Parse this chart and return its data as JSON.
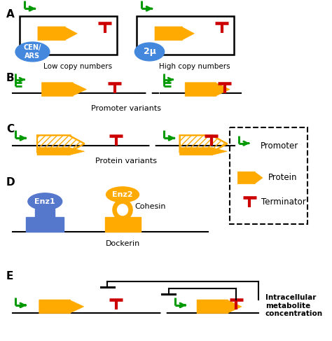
{
  "bg_color": "#ffffff",
  "green": "#009900",
  "yellow": "#ffaa00",
  "red": "#cc0000",
  "blue_ell": "#4488dd",
  "blue_rect": "#5577cc",
  "gold": "#ffaa00",
  "label_A": "A",
  "label_B": "B",
  "label_C": "C",
  "label_D": "D",
  "label_E": "E",
  "text_low_copy": "Low copy numbers",
  "text_high_copy": "High copy numbers",
  "text_promoter_variants": "Promoter variants",
  "text_protein_variants": "Protein variants",
  "text_dockerin": "Dockerin",
  "text_cohesin": "Cohesin",
  "text_enz1": "Enz1",
  "text_enz2": "Enz2",
  "text_promoter": "Promoter",
  "text_protein": "Protein",
  "text_terminator": "Terminator",
  "text_intracellular": "Intracellular\nmetabolite\nconcentration",
  "text_cen_ars": "CEN/\nARS",
  "text_2mu": "2μ"
}
